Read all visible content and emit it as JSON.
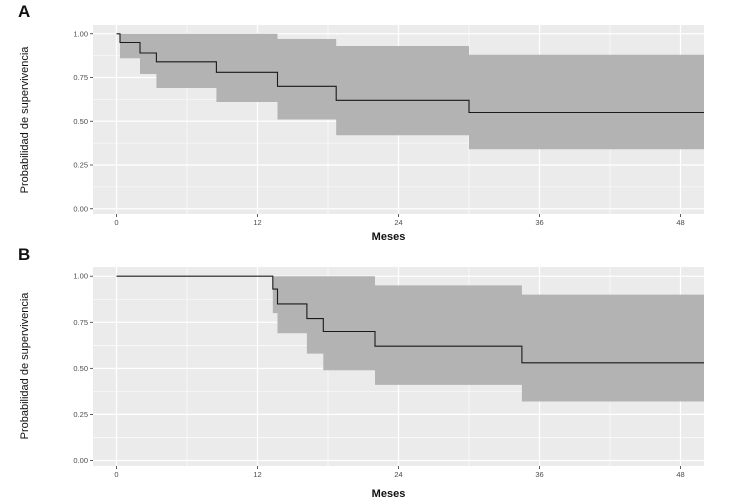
{
  "chart_data": [
    {
      "type": "line",
      "panel_label": "A",
      "xlabel": "Meses",
      "ylabel": "Probabilidad de supervivencia",
      "xlim": [
        -2,
        50
      ],
      "ylim": [
        -0.03,
        1.05
      ],
      "x_ticks": [
        0,
        12,
        24,
        36,
        48
      ],
      "x_tick_labels": [
        "0",
        "12",
        "24",
        "36",
        "48"
      ],
      "y_ticks": [
        0,
        0.25,
        0.5,
        0.75,
        1
      ],
      "y_tick_labels": [
        "0.00",
        "0.25",
        "0.50",
        "0.75",
        "1.00"
      ],
      "grid": true,
      "legend": "none",
      "colors": {
        "panel_bg": "#ebebeb",
        "grid": "#ffffff",
        "band": "#b3b3b3",
        "curve": "#1a1a1a"
      },
      "series": [
        {
          "kind": "step",
          "x": [
            0,
            0.3,
            2.0,
            3.4,
            8.5,
            13.7,
            18.7,
            30.0,
            50
          ],
          "y": [
            1.0,
            0.95,
            0.89,
            0.84,
            0.78,
            0.7,
            0.62,
            0.55,
            0.55
          ]
        }
      ],
      "confidence_band": {
        "x": [
          0,
          0.3,
          2.0,
          3.4,
          8.5,
          13.7,
          18.7,
          30.0,
          50
        ],
        "upper": [
          1.0,
          1.0,
          1.0,
          1.0,
          1.0,
          0.97,
          0.93,
          0.88,
          0.88
        ],
        "lower": [
          1.0,
          0.86,
          0.77,
          0.69,
          0.61,
          0.51,
          0.42,
          0.34,
          0.34
        ]
      }
    },
    {
      "type": "line",
      "panel_label": "B",
      "xlabel": "Meses",
      "ylabel": "Probabilidad de supervivencia",
      "xlim": [
        -2,
        50
      ],
      "ylim": [
        -0.03,
        1.05
      ],
      "x_ticks": [
        0,
        12,
        24,
        36,
        48
      ],
      "x_tick_labels": [
        "0",
        "12",
        "24",
        "36",
        "48"
      ],
      "y_ticks": [
        0,
        0.25,
        0.5,
        0.75,
        1
      ],
      "y_tick_labels": [
        "0.00",
        "0.25",
        "0.50",
        "0.75",
        "1.00"
      ],
      "grid": true,
      "legend": "none",
      "colors": {
        "panel_bg": "#ebebeb",
        "grid": "#ffffff",
        "band": "#b3b3b3",
        "curve": "#1a1a1a"
      },
      "series": [
        {
          "kind": "step",
          "x": [
            0,
            13.3,
            13.7,
            16.2,
            17.6,
            22.0,
            34.5,
            50
          ],
          "y": [
            1.0,
            0.93,
            0.85,
            0.77,
            0.7,
            0.62,
            0.53,
            0.53
          ]
        }
      ],
      "confidence_band": {
        "x": [
          0,
          13.3,
          13.7,
          16.2,
          17.6,
          22.0,
          34.5,
          50
        ],
        "upper": [
          1.0,
          1.0,
          1.0,
          1.0,
          1.0,
          0.95,
          0.9,
          0.9
        ],
        "lower": [
          1.0,
          0.8,
          0.69,
          0.58,
          0.49,
          0.41,
          0.32,
          0.32
        ]
      }
    }
  ]
}
